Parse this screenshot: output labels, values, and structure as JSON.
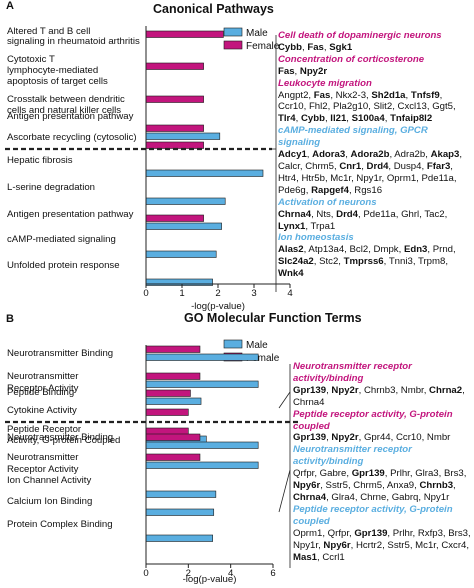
{
  "colors": {
    "male": "#5aaee0",
    "female": "#c2157d",
    "bar_edge": "#1a1a1a",
    "text": "#111111",
    "axis": "#222222"
  },
  "chart_data": [
    {
      "type": "bar",
      "orientation": "horizontal",
      "panel_letter": "A",
      "title": "Canonical Pathways",
      "xlabel": "-log(p-value)",
      "xlim": [
        0,
        4
      ],
      "xticks": [
        0,
        1,
        2,
        3,
        4
      ],
      "legend": {
        "position": "top-right",
        "entries": [
          "Male",
          "Female"
        ]
      },
      "groups": [
        {
          "name": "female-group",
          "highlight": "Female",
          "categories": [
            "Altered T and B cell signaling in rheumatoid arthritis",
            "Cytotoxic T lymphocyte-mediated apoptosis of target cells",
            "Crosstalk between dendritic cells and natural killer cells",
            "Antigen presentation pathway",
            "Ascorbate recycling (cytosolic)"
          ],
          "series": [
            {
              "name": "Male",
              "values": [
                null,
                null,
                null,
                2.05,
                null
              ]
            },
            {
              "name": "Female",
              "values": [
                2.15,
                1.6,
                1.6,
                1.6,
                1.6
              ]
            }
          ]
        },
        {
          "name": "male-group",
          "highlight": "Male",
          "categories": [
            "Hepatic fibrosis",
            "L-serine degradation",
            "Antigen presentation pathway",
            "cAMP-mediated signaling",
            "Unfolded protein response"
          ],
          "series": [
            {
              "name": "Male",
              "values": [
                3.25,
                2.2,
                2.1,
                1.95,
                1.85
              ]
            },
            {
              "name": "Female",
              "values": [
                null,
                null,
                1.6,
                null,
                null
              ]
            }
          ]
        }
      ]
    },
    {
      "type": "bar",
      "orientation": "horizontal",
      "panel_letter": "B",
      "title": "GO Molecular Function Terms",
      "xlabel": "-log(p-value)",
      "xlim": [
        0,
        6
      ],
      "xticks": [
        0,
        2,
        4,
        6
      ],
      "legend": {
        "position": "top-right",
        "entries": [
          "Male",
          "Female"
        ]
      },
      "groups": [
        {
          "name": "female-group",
          "highlight": "Female",
          "categories": [
            "Neurotransmitter Binding",
            "Neurotransmitter Receptor Activity",
            "Peptide Binding",
            "Cytokine Activity",
            "Peptide Receptor Activity, G-protein Coupled"
          ],
          "series": [
            {
              "name": "Male",
              "values": [
                5.3,
                5.3,
                2.6,
                null,
                2.85
              ]
            },
            {
              "name": "Female",
              "values": [
                2.55,
                2.55,
                2.1,
                2.0,
                2.0
              ]
            }
          ]
        },
        {
          "name": "male-group",
          "highlight": "Male",
          "categories": [
            "Neurotransmitter Binding",
            "Neurotransmitter Receptor Activity",
            "Ion Channel Activity",
            "Calcium Ion Binding",
            "Protein Complex Binding"
          ],
          "series": [
            {
              "name": "Male",
              "values": [
                5.3,
                5.3,
                3.3,
                3.2,
                3.15
              ]
            },
            {
              "name": "Female",
              "values": [
                2.55,
                2.55,
                null,
                null,
                null
              ]
            }
          ]
        }
      ]
    }
  ],
  "gene_panels": [
    {
      "name": "panel-a-genes",
      "blocks": [
        {
          "head": "Cell death of dopaminergic neurons",
          "color": "female",
          "genes": [
            {
              "t": "Cybb",
              "b": true
            },
            {
              "t": "Fas",
              "b": true
            },
            {
              "t": "Sgk1",
              "b": true
            }
          ]
        },
        {
          "head": "Concentration of corticosterone",
          "color": "female",
          "genes": [
            {
              "t": "Fas",
              "b": true
            },
            {
              "t": "Npy2r",
              "b": true
            }
          ]
        },
        {
          "head": "Leukocyte migration",
          "color": "female",
          "genes": [
            {
              "t": "Angpt2"
            },
            {
              "t": "Fas",
              "b": true
            },
            {
              "t": "Nkx2-3"
            },
            {
              "t": "Sh2d1a",
              "b": true
            },
            {
              "t": "Tnfsf9",
              "b": true
            },
            {
              "t": "Ccr10"
            },
            {
              "t": "Fhl2"
            },
            {
              "t": "Pla2g10"
            },
            {
              "t": "Slit2"
            },
            {
              "t": "Cxcl13"
            },
            {
              "t": "Ggt5"
            },
            {
              "t": "Tlr4",
              "b": true
            },
            {
              "t": "Cybb",
              "b": true
            },
            {
              "t": "Il21",
              "b": true
            },
            {
              "t": "S100a4",
              "b": true
            },
            {
              "t": "Tnfaip8l2",
              "b": true
            }
          ]
        },
        {
          "head": "cAMP-mediated signaling, GPCR signaling",
          "color": "male",
          "genes": [
            {
              "t": "Adcy1",
              "b": true
            },
            {
              "t": "Adora3",
              "b": true
            },
            {
              "t": "Adora2b",
              "b": true
            },
            {
              "t": "Adra2b"
            },
            {
              "t": "Akap3",
              "b": true
            },
            {
              "t": "Calcr"
            },
            {
              "t": "Chrm5"
            },
            {
              "t": "Cnr1",
              "b": true
            },
            {
              "t": "Drd4",
              "b": true
            },
            {
              "t": "Dusp4"
            },
            {
              "t": "Ffar3",
              "b": true
            },
            {
              "t": "Htr4"
            },
            {
              "t": "Htr5b"
            },
            {
              "t": "Mc1r"
            },
            {
              "t": "Npy1r"
            },
            {
              "t": "Oprm1"
            },
            {
              "t": "Pde11a"
            },
            {
              "t": "Pde6g"
            },
            {
              "t": "Rapgef4",
              "b": true
            },
            {
              "t": "Rgs16"
            }
          ]
        },
        {
          "head": "Activation of neurons",
          "color": "male",
          "genes": [
            {
              "t": "Chrna4",
              "b": true
            },
            {
              "t": "Nts"
            },
            {
              "t": "Drd4",
              "b": true
            },
            {
              "t": "Pde11a"
            },
            {
              "t": "Ghrl"
            },
            {
              "t": "Tac2"
            },
            {
              "t": "Lynx1",
              "b": true
            },
            {
              "t": "Trpa1"
            }
          ]
        },
        {
          "head": "Ion homeostasis",
          "color": "male",
          "genes": [
            {
              "t": "Alas2",
              "b": true
            },
            {
              "t": "Atp13a4"
            },
            {
              "t": "Bcl2"
            },
            {
              "t": "Dmpk"
            },
            {
              "t": "Edn3",
              "b": true
            },
            {
              "t": "Prnd"
            },
            {
              "t": "Slc24a2",
              "b": true
            },
            {
              "t": "Stc2"
            },
            {
              "t": "Tmprss6",
              "b": true
            },
            {
              "t": "Tnni3"
            },
            {
              "t": "Trpm8"
            },
            {
              "t": "Wnk4",
              "b": true
            }
          ]
        }
      ]
    },
    {
      "name": "panel-b-genes",
      "blocks": [
        {
          "head": "Neurotransmitter receptor activity/binding",
          "color": "female",
          "genes": [
            {
              "t": "Gpr139",
              "b": true
            },
            {
              "t": "Npy2r",
              "b": true
            },
            {
              "t": "Chrnb3"
            },
            {
              "t": "Nmbr"
            },
            {
              "t": "Chrna2",
              "b": true
            },
            {
              "t": "Chrna4"
            }
          ]
        },
        {
          "head": "Peptide receptor activity, G-protein coupled",
          "color": "female",
          "genes": [
            {
              "t": "Gpr139",
              "b": true
            },
            {
              "t": "Npy2r",
              "b": true
            },
            {
              "t": "Gpr44"
            },
            {
              "t": "Ccr10"
            },
            {
              "t": "Nmbr"
            }
          ]
        },
        {
          "head": "Neurotransmitter receptor activity/binding",
          "color": "male",
          "genes": [
            {
              "t": "Qrfpr"
            },
            {
              "t": "Gabre"
            },
            {
              "t": "Gpr139",
              "b": true
            },
            {
              "t": "Prlhr"
            },
            {
              "t": "Glra3"
            },
            {
              "t": "Brs3"
            },
            {
              "t": "Npy6r",
              "b": true
            },
            {
              "t": "Sstr5"
            },
            {
              "t": "Chrm5"
            },
            {
              "t": "Anxa9"
            },
            {
              "t": "Chrnb3",
              "b": true
            },
            {
              "t": "Chrna4",
              "b": true
            },
            {
              "t": "Glra4"
            },
            {
              "t": "Chrne"
            },
            {
              "t": "Gabrq"
            },
            {
              "t": "Npy1r"
            }
          ]
        },
        {
          "head": "Peptide receptor activity, G-protein coupled",
          "color": "male",
          "genes": [
            {
              "t": "Oprm1"
            },
            {
              "t": "Qrfpr"
            },
            {
              "t": "Gpr139",
              "b": true
            },
            {
              "t": "Prlhr"
            },
            {
              "t": "Rxfp3"
            },
            {
              "t": "Brs3"
            },
            {
              "t": "Npy1r"
            },
            {
              "t": "Npy6r",
              "b": true
            },
            {
              "t": "Hcrtr2"
            },
            {
              "t": "Sstr5"
            },
            {
              "t": "Mc1r"
            },
            {
              "t": "Cxcr4"
            },
            {
              "t": "Mas1",
              "b": true
            },
            {
              "t": "Ccrl1"
            }
          ]
        }
      ]
    }
  ]
}
